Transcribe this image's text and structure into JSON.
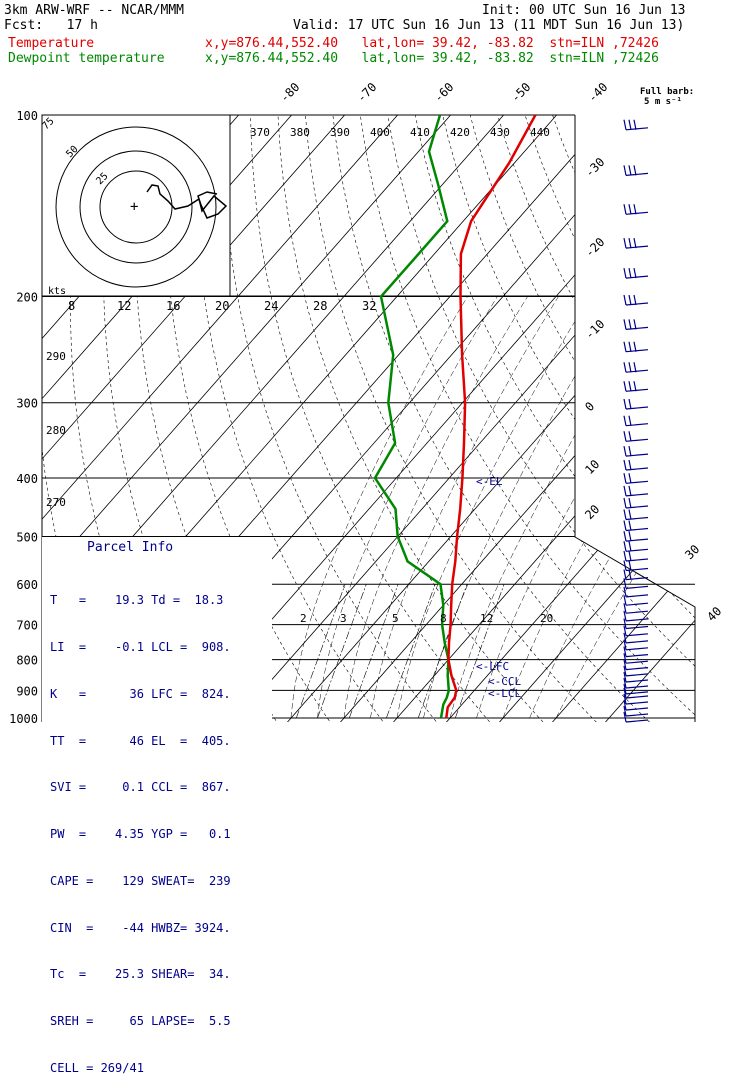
{
  "header": {
    "model": "3km ARW-WRF -- NCAR/MMM",
    "init": "Init: 00 UTC Sun 16 Jun 13",
    "fcst": "Fcst:   17 h",
    "valid": "Valid: 17 UTC Sun 16 Jun 13 (11 MDT Sun 16 Jun 13)",
    "temp_label": "Temperature",
    "dew_label": "Dewpoint temperature",
    "temp_info": "x,y=876.44,552.40   lat,lon= 39.42, -83.82  stn=ILN ,72426",
    "dew_info": "x,y=876.44,552.40   lat,lon= 39.42, -83.82  stn=ILN ,72426"
  },
  "barb_legend": {
    "line1": "Full barb:",
    "line2": "5 m s⁻¹"
  },
  "parcel": {
    "title": "Parcel Info",
    "rows": [
      "T   =    19.3 Td =  18.3",
      "LI  =    -0.1 LCL =  908.",
      "K   =      36 LFC =  824.",
      "TT  =      46 EL  =  405.",
      "SVI =     0.1 CCL =  867.",
      "PW  =    4.35 YGP =   0.1",
      "CAPE =    129 SWEAT=  239",
      "CIN  =    -44 HWBZ= 3924.",
      "Tc  =    25.3 SHEAR=  34.",
      "SREH =     65 LAPSE=  5.5",
      "CELL = 269/41"
    ]
  },
  "chart_data": {
    "type": "skew-t",
    "pressure_labels": [
      "100",
      "200",
      "300",
      "400",
      "500",
      "600",
      "700",
      "800",
      "900",
      "1000"
    ],
    "pressure_levels": [
      100,
      200,
      300,
      400,
      500,
      600,
      700,
      800,
      900,
      1000
    ],
    "temp_labels": [
      "-80",
      "-70",
      "-60",
      "-50",
      "-40",
      "-30",
      "-20",
      "-10",
      "0",
      "10",
      "20",
      "30",
      "40"
    ],
    "theta_labels": [
      "370",
      "380",
      "390",
      "400",
      "410",
      "420",
      "430",
      "440"
    ],
    "theta_left_labels": [
      "290",
      "280",
      "270"
    ],
    "hodo_speed_labels": [
      "8",
      "12",
      "16",
      "20",
      "24",
      "28",
      "32"
    ],
    "mixing_labels": [
      "2",
      "3",
      "5",
      "8",
      "12",
      "20"
    ],
    "ring_labels": [
      "75",
      "50",
      "25"
    ],
    "kts_label": "kts",
    "levels": {
      "el": "<-EL",
      "lfc": "<-LFC",
      "ccl": "<-CCL",
      "lcl": "<-LCL"
    },
    "temperature": [
      [
        1000,
        19.3
      ],
      [
        960,
        17.8
      ],
      [
        925,
        17.5
      ],
      [
        900,
        16.6
      ],
      [
        850,
        13.2
      ],
      [
        800,
        10.0
      ],
      [
        750,
        7.3
      ],
      [
        700,
        4.6
      ],
      [
        650,
        1.5
      ],
      [
        600,
        -1.8
      ],
      [
        550,
        -5.0
      ],
      [
        500,
        -8.8
      ],
      [
        450,
        -12.8
      ],
      [
        400,
        -17.5
      ],
      [
        350,
        -23.0
      ],
      [
        300,
        -29.5
      ],
      [
        250,
        -38.0
      ],
      [
        200,
        -48.0
      ],
      [
        170,
        -55.0
      ],
      [
        150,
        -58.5
      ],
      [
        120,
        -61.0
      ],
      [
        100,
        -64.0
      ]
    ],
    "dewpoint": [
      [
        1000,
        18.3
      ],
      [
        950,
        16.5
      ],
      [
        925,
        16.0
      ],
      [
        900,
        15.2
      ],
      [
        850,
        12.5
      ],
      [
        800,
        10.0
      ],
      [
        750,
        6.5
      ],
      [
        700,
        3.0
      ],
      [
        650,
        0.0
      ],
      [
        600,
        -4.0
      ],
      [
        550,
        -14.0
      ],
      [
        500,
        -20.0
      ],
      [
        450,
        -25.0
      ],
      [
        400,
        -34.0
      ],
      [
        350,
        -36.0
      ],
      [
        300,
        -44.0
      ],
      [
        250,
        -51.0
      ],
      [
        200,
        -63.0
      ],
      [
        170,
        -63.0
      ],
      [
        150,
        -63.0
      ],
      [
        130,
        -71.0
      ],
      [
        115,
        -78.0
      ],
      [
        100,
        -82.0
      ]
    ],
    "wind_pressures": [
      105,
      125,
      145,
      165,
      185,
      205,
      225,
      245,
      265,
      285,
      305,
      325,
      345,
      365,
      385,
      405,
      425,
      445,
      465,
      485,
      505,
      525,
      545,
      565,
      585,
      605,
      625,
      645,
      665,
      685,
      705,
      725,
      745,
      765,
      785,
      805,
      825,
      845,
      865,
      885,
      905,
      925,
      945,
      965,
      985,
      1005
    ],
    "colors": {
      "temperature": "#e00000",
      "dewpoint": "#008800",
      "grid": "#000000",
      "parcel": "#00008b",
      "barbs": "#00008b"
    }
  }
}
